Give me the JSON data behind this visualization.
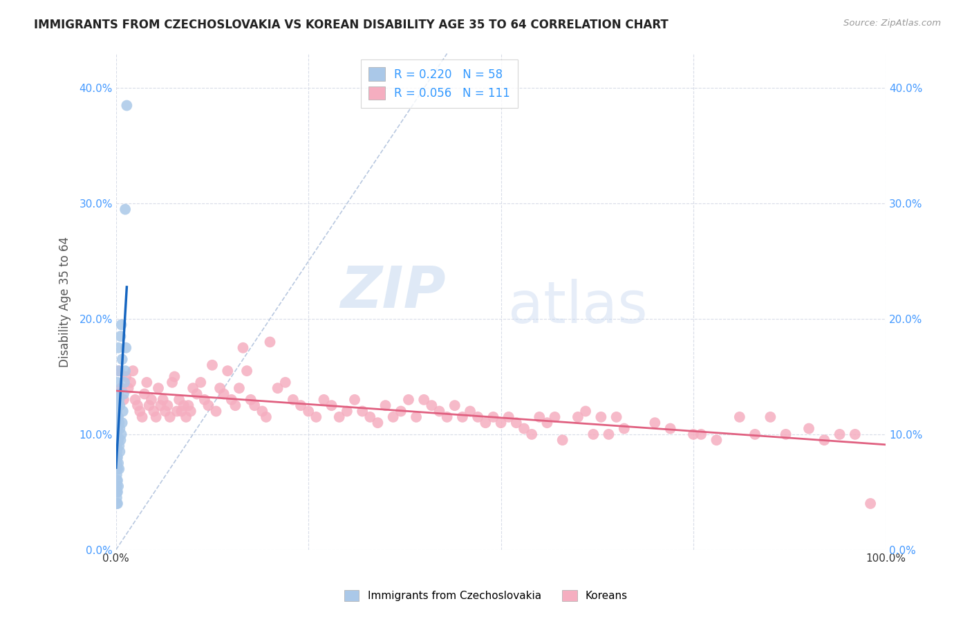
{
  "title": "IMMIGRANTS FROM CZECHOSLOVAKIA VS KOREAN DISABILITY AGE 35 TO 64 CORRELATION CHART",
  "source": "Source: ZipAtlas.com",
  "ylabel": "Disability Age 35 to 64",
  "xmin": 0.0,
  "xmax": 1.0,
  "ymin": 0.0,
  "ymax": 0.43,
  "czech_R": 0.22,
  "czech_N": 58,
  "korean_R": 0.056,
  "korean_N": 111,
  "legend_label1": "Immigrants from Czechoslovakia",
  "legend_label2": "Koreans",
  "czech_color": "#aac8e8",
  "czech_line_color": "#1565c0",
  "korean_color": "#f5aec0",
  "korean_line_color": "#e06080",
  "diag_line_color": "#b8c8e0",
  "czech_x": [
    0.001,
    0.001,
    0.001,
    0.001,
    0.001,
    0.001,
    0.001,
    0.001,
    0.001,
    0.001,
    0.001,
    0.001,
    0.001,
    0.001,
    0.001,
    0.001,
    0.001,
    0.001,
    0.001,
    0.001,
    0.002,
    0.002,
    0.002,
    0.002,
    0.002,
    0.002,
    0.002,
    0.002,
    0.002,
    0.002,
    0.002,
    0.003,
    0.003,
    0.003,
    0.003,
    0.003,
    0.003,
    0.003,
    0.004,
    0.004,
    0.004,
    0.004,
    0.005,
    0.005,
    0.005,
    0.006,
    0.006,
    0.007,
    0.007,
    0.008,
    0.008,
    0.009,
    0.01,
    0.011,
    0.012,
    0.012,
    0.013,
    0.014
  ],
  "czech_y": [
    0.04,
    0.045,
    0.05,
    0.055,
    0.06,
    0.065,
    0.07,
    0.075,
    0.08,
    0.085,
    0.09,
    0.095,
    0.1,
    0.105,
    0.11,
    0.115,
    0.12,
    0.125,
    0.13,
    0.135,
    0.04,
    0.05,
    0.06,
    0.07,
    0.08,
    0.095,
    0.105,
    0.115,
    0.125,
    0.135,
    0.145,
    0.055,
    0.075,
    0.095,
    0.115,
    0.135,
    0.155,
    0.175,
    0.07,
    0.09,
    0.11,
    0.13,
    0.085,
    0.105,
    0.125,
    0.095,
    0.185,
    0.1,
    0.195,
    0.11,
    0.165,
    0.12,
    0.135,
    0.145,
    0.155,
    0.295,
    0.175,
    0.385
  ],
  "korean_x": [
    0.004,
    0.007,
    0.01,
    0.013,
    0.016,
    0.019,
    0.022,
    0.025,
    0.028,
    0.031,
    0.034,
    0.037,
    0.04,
    0.043,
    0.046,
    0.049,
    0.052,
    0.055,
    0.058,
    0.061,
    0.064,
    0.067,
    0.07,
    0.073,
    0.076,
    0.079,
    0.082,
    0.085,
    0.088,
    0.091,
    0.094,
    0.097,
    0.1,
    0.105,
    0.11,
    0.115,
    0.12,
    0.125,
    0.13,
    0.135,
    0.14,
    0.145,
    0.15,
    0.155,
    0.16,
    0.165,
    0.17,
    0.175,
    0.18,
    0.19,
    0.195,
    0.2,
    0.21,
    0.22,
    0.23,
    0.24,
    0.25,
    0.26,
    0.27,
    0.28,
    0.29,
    0.3,
    0.31,
    0.32,
    0.33,
    0.34,
    0.35,
    0.36,
    0.37,
    0.38,
    0.39,
    0.4,
    0.41,
    0.42,
    0.43,
    0.44,
    0.45,
    0.46,
    0.47,
    0.48,
    0.49,
    0.5,
    0.51,
    0.52,
    0.53,
    0.54,
    0.55,
    0.56,
    0.57,
    0.58,
    0.6,
    0.61,
    0.62,
    0.63,
    0.64,
    0.65,
    0.66,
    0.7,
    0.72,
    0.75,
    0.76,
    0.78,
    0.81,
    0.83,
    0.85,
    0.87,
    0.9,
    0.92,
    0.94,
    0.96,
    0.98
  ],
  "korean_y": [
    0.155,
    0.14,
    0.13,
    0.15,
    0.14,
    0.145,
    0.155,
    0.13,
    0.125,
    0.12,
    0.115,
    0.135,
    0.145,
    0.125,
    0.13,
    0.12,
    0.115,
    0.14,
    0.125,
    0.13,
    0.12,
    0.125,
    0.115,
    0.145,
    0.15,
    0.12,
    0.13,
    0.12,
    0.125,
    0.115,
    0.125,
    0.12,
    0.14,
    0.135,
    0.145,
    0.13,
    0.125,
    0.16,
    0.12,
    0.14,
    0.135,
    0.155,
    0.13,
    0.125,
    0.14,
    0.175,
    0.155,
    0.13,
    0.125,
    0.12,
    0.115,
    0.18,
    0.14,
    0.145,
    0.13,
    0.125,
    0.12,
    0.115,
    0.13,
    0.125,
    0.115,
    0.12,
    0.13,
    0.12,
    0.115,
    0.11,
    0.125,
    0.115,
    0.12,
    0.13,
    0.115,
    0.13,
    0.125,
    0.12,
    0.115,
    0.125,
    0.115,
    0.12,
    0.115,
    0.11,
    0.115,
    0.11,
    0.115,
    0.11,
    0.105,
    0.1,
    0.115,
    0.11,
    0.115,
    0.095,
    0.115,
    0.12,
    0.1,
    0.115,
    0.1,
    0.115,
    0.105,
    0.11,
    0.105,
    0.1,
    0.1,
    0.095,
    0.115,
    0.1,
    0.115,
    0.1,
    0.105,
    0.095,
    0.1,
    0.1,
    0.04
  ],
  "tick_color": "#4499ff",
  "grid_color": "#d8dce8",
  "title_color": "#222222",
  "source_color": "#999999",
  "ylabel_color": "#555555"
}
